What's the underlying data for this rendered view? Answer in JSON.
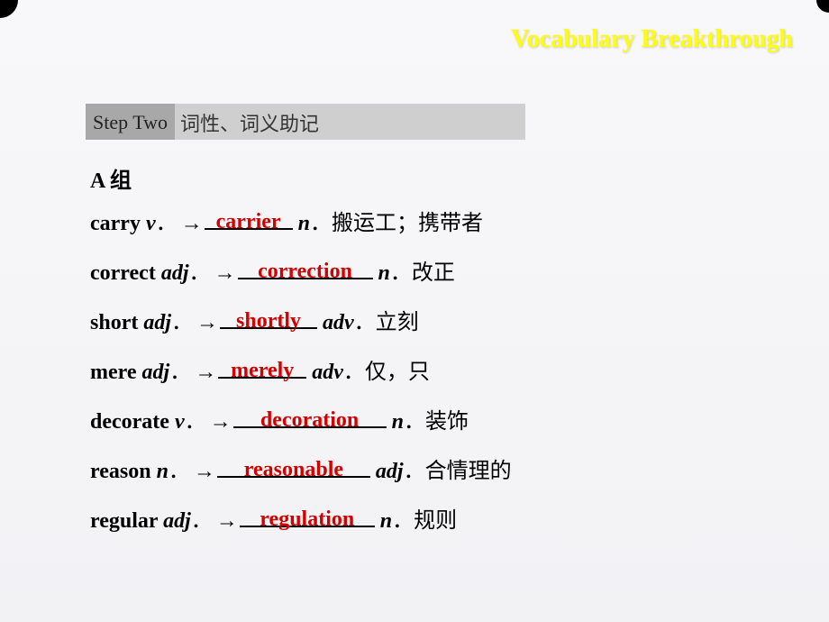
{
  "header": {
    "title": "Vocabulary Breakthrough"
  },
  "step": {
    "label": "Step Two",
    "desc": "词性、词义助记"
  },
  "group": {
    "title": "A 组"
  },
  "rows": [
    {
      "base": "carry",
      "pos": "v",
      "answer": "carrier",
      "blank_width": 98,
      "result_pos": "n",
      "def": "搬运工；携带者"
    },
    {
      "base": "correct",
      "pos": "adj",
      "answer": "correction",
      "blank_width": 150,
      "result_pos": "n",
      "def": "改正"
    },
    {
      "base": "short",
      "pos": "adj",
      "answer": "shortly",
      "blank_width": 108,
      "result_pos": "adv",
      "def": "立刻"
    },
    {
      "base": "mere",
      "pos": "adj",
      "answer": "merely",
      "blank_width": 98,
      "result_pos": "adv",
      "def": "仅，只"
    },
    {
      "base": "decorate",
      "pos": "v",
      "answer": "decoration",
      "blank_width": 170,
      "result_pos": "n",
      "def": "装饰"
    },
    {
      "base": "reason",
      "pos": "n",
      "answer": "reasonable",
      "blank_width": 170,
      "result_pos": "adj",
      "def": "合情理的"
    },
    {
      "base": "regular",
      "pos": "adj",
      "answer": "regulation",
      "blank_width": 150,
      "result_pos": "n",
      "def": "规则"
    }
  ],
  "colors": {
    "answer": "#d40000",
    "header": "#ffff00",
    "step_label_bg": "#a8a8a8",
    "step_desc_bg": "#cfcfcf"
  }
}
